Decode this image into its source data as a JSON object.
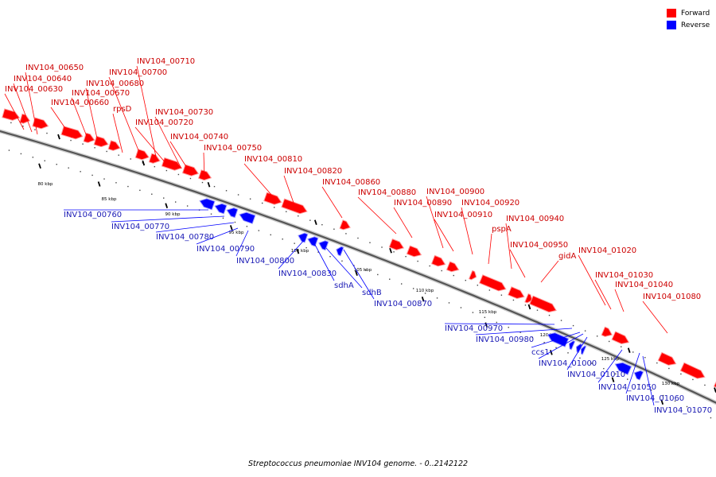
{
  "legend": {
    "forward": {
      "label": "Forward",
      "color": "#ff0000"
    },
    "reverse": {
      "label": "Reverse",
      "color": "#0000ff"
    }
  },
  "caption": "Streptococcus pneumoniae INV104 genome. - 0..2142122",
  "kbp_ticks": [
    "80 kbp",
    "85 kbp",
    "90 kbp",
    "95 kbp",
    "100 kbp",
    "105 kbp",
    "110 kbp",
    "115 kbp",
    "120 kbp",
    "125 kbp",
    "130 kbp"
  ],
  "forward_genes": [
    "INV104_00650",
    "INV104_00640",
    "INV104_00630",
    "INV104_00680",
    "INV104_00670",
    "INV104_00660",
    "INV104_00710",
    "INV104_00700",
    "rpsD",
    "INV104_00730",
    "INV104_00720",
    "INV104_00740",
    "INV104_00750",
    "INV104_00810",
    "INV104_00820",
    "INV104_00860",
    "INV104_00880",
    "INV104_00890",
    "INV104_00900",
    "INV104_00910",
    "INV104_00920",
    "pspA",
    "INV104_00940",
    "INV104_00950",
    "gidA",
    "INV104_01020",
    "INV104_01030",
    "INV104_01040",
    "INV104_01080"
  ],
  "reverse_genes": [
    "INV104_00760",
    "INV104_00770",
    "INV104_00780",
    "INV104_00790",
    "INV104_00800",
    "INV104_00830",
    "sdhA",
    "sdhB",
    "INV104_00870",
    "INV104_00970",
    "INV104_00980",
    "ccs1",
    "INV104_01000",
    "INV104_01010",
    "INV104_01050",
    "INV104_01060",
    "INV104_01070"
  ]
}
